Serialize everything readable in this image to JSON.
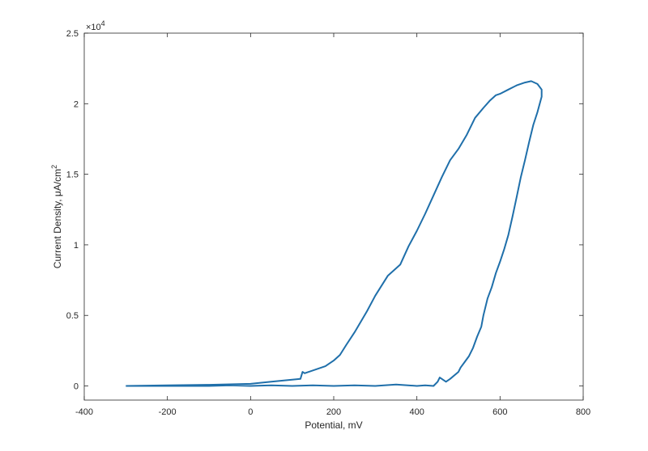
{
  "chart_data": {
    "type": "line",
    "title": "",
    "xlabel": "Potential, mV",
    "ylabel": "Current Density, μA/cm²",
    "ylabel_main": "Current Density, μA/cm",
    "ylabel_sup": "2",
    "xlim": [
      -400,
      800
    ],
    "ylim": [
      -1000,
      25000
    ],
    "x_ticks": [
      -400,
      -200,
      0,
      200,
      400,
      600,
      800
    ],
    "x_tick_labels": [
      "-400",
      "-200",
      "0",
      "200",
      "400",
      "600",
      "800"
    ],
    "y_ticks": [
      0,
      5000,
      10000,
      15000,
      20000,
      25000
    ],
    "y_tick_labels": [
      "0",
      "0.5",
      "1",
      "1.5",
      "2",
      "2.5"
    ],
    "y_multiplier_base": "×10",
    "y_multiplier_exp": "4",
    "grid": false,
    "legend": "none",
    "color": "#1f6faa",
    "series": [
      {
        "x": [
          -300,
          -200,
          -100,
          0,
          50,
          100,
          120,
          125,
          130,
          140,
          180,
          200,
          215,
          230,
          250,
          280,
          300,
          330,
          360,
          380,
          400,
          420,
          440,
          460,
          480,
          500,
          520,
          540,
          560,
          575,
          590,
          600,
          620,
          640,
          660,
          675,
          690,
          700,
          700,
          690,
          680,
          670,
          660,
          650,
          640,
          630,
          620,
          610,
          600,
          590,
          580,
          570,
          560,
          555,
          545,
          535,
          525,
          515,
          505,
          500,
          480,
          470,
          455,
          450,
          440,
          420,
          400,
          350,
          300,
          250,
          200,
          150,
          100,
          50,
          0,
          -50,
          -100,
          -150,
          -200,
          -250,
          -300
        ],
        "y": [
          0,
          50,
          80,
          150,
          300,
          450,
          500,
          1000,
          900,
          1000,
          1400,
          1800,
          2200,
          2900,
          3800,
          5300,
          6400,
          7800,
          8600,
          9900,
          11000,
          12200,
          13500,
          14800,
          16000,
          16800,
          17800,
          19000,
          19700,
          20200,
          20600,
          20700,
          21000,
          21300,
          21500,
          21600,
          21400,
          21000,
          20500,
          19400,
          18500,
          17300,
          16000,
          14800,
          13400,
          12000,
          10700,
          9700,
          8800,
          8000,
          7000,
          6200,
          5000,
          4200,
          3500,
          2700,
          2100,
          1700,
          1300,
          1000,
          500,
          300,
          600,
          300,
          0,
          50,
          0,
          100,
          0,
          50,
          0,
          50,
          0,
          50,
          0,
          50,
          0,
          0,
          0,
          0,
          0
        ]
      }
    ]
  }
}
